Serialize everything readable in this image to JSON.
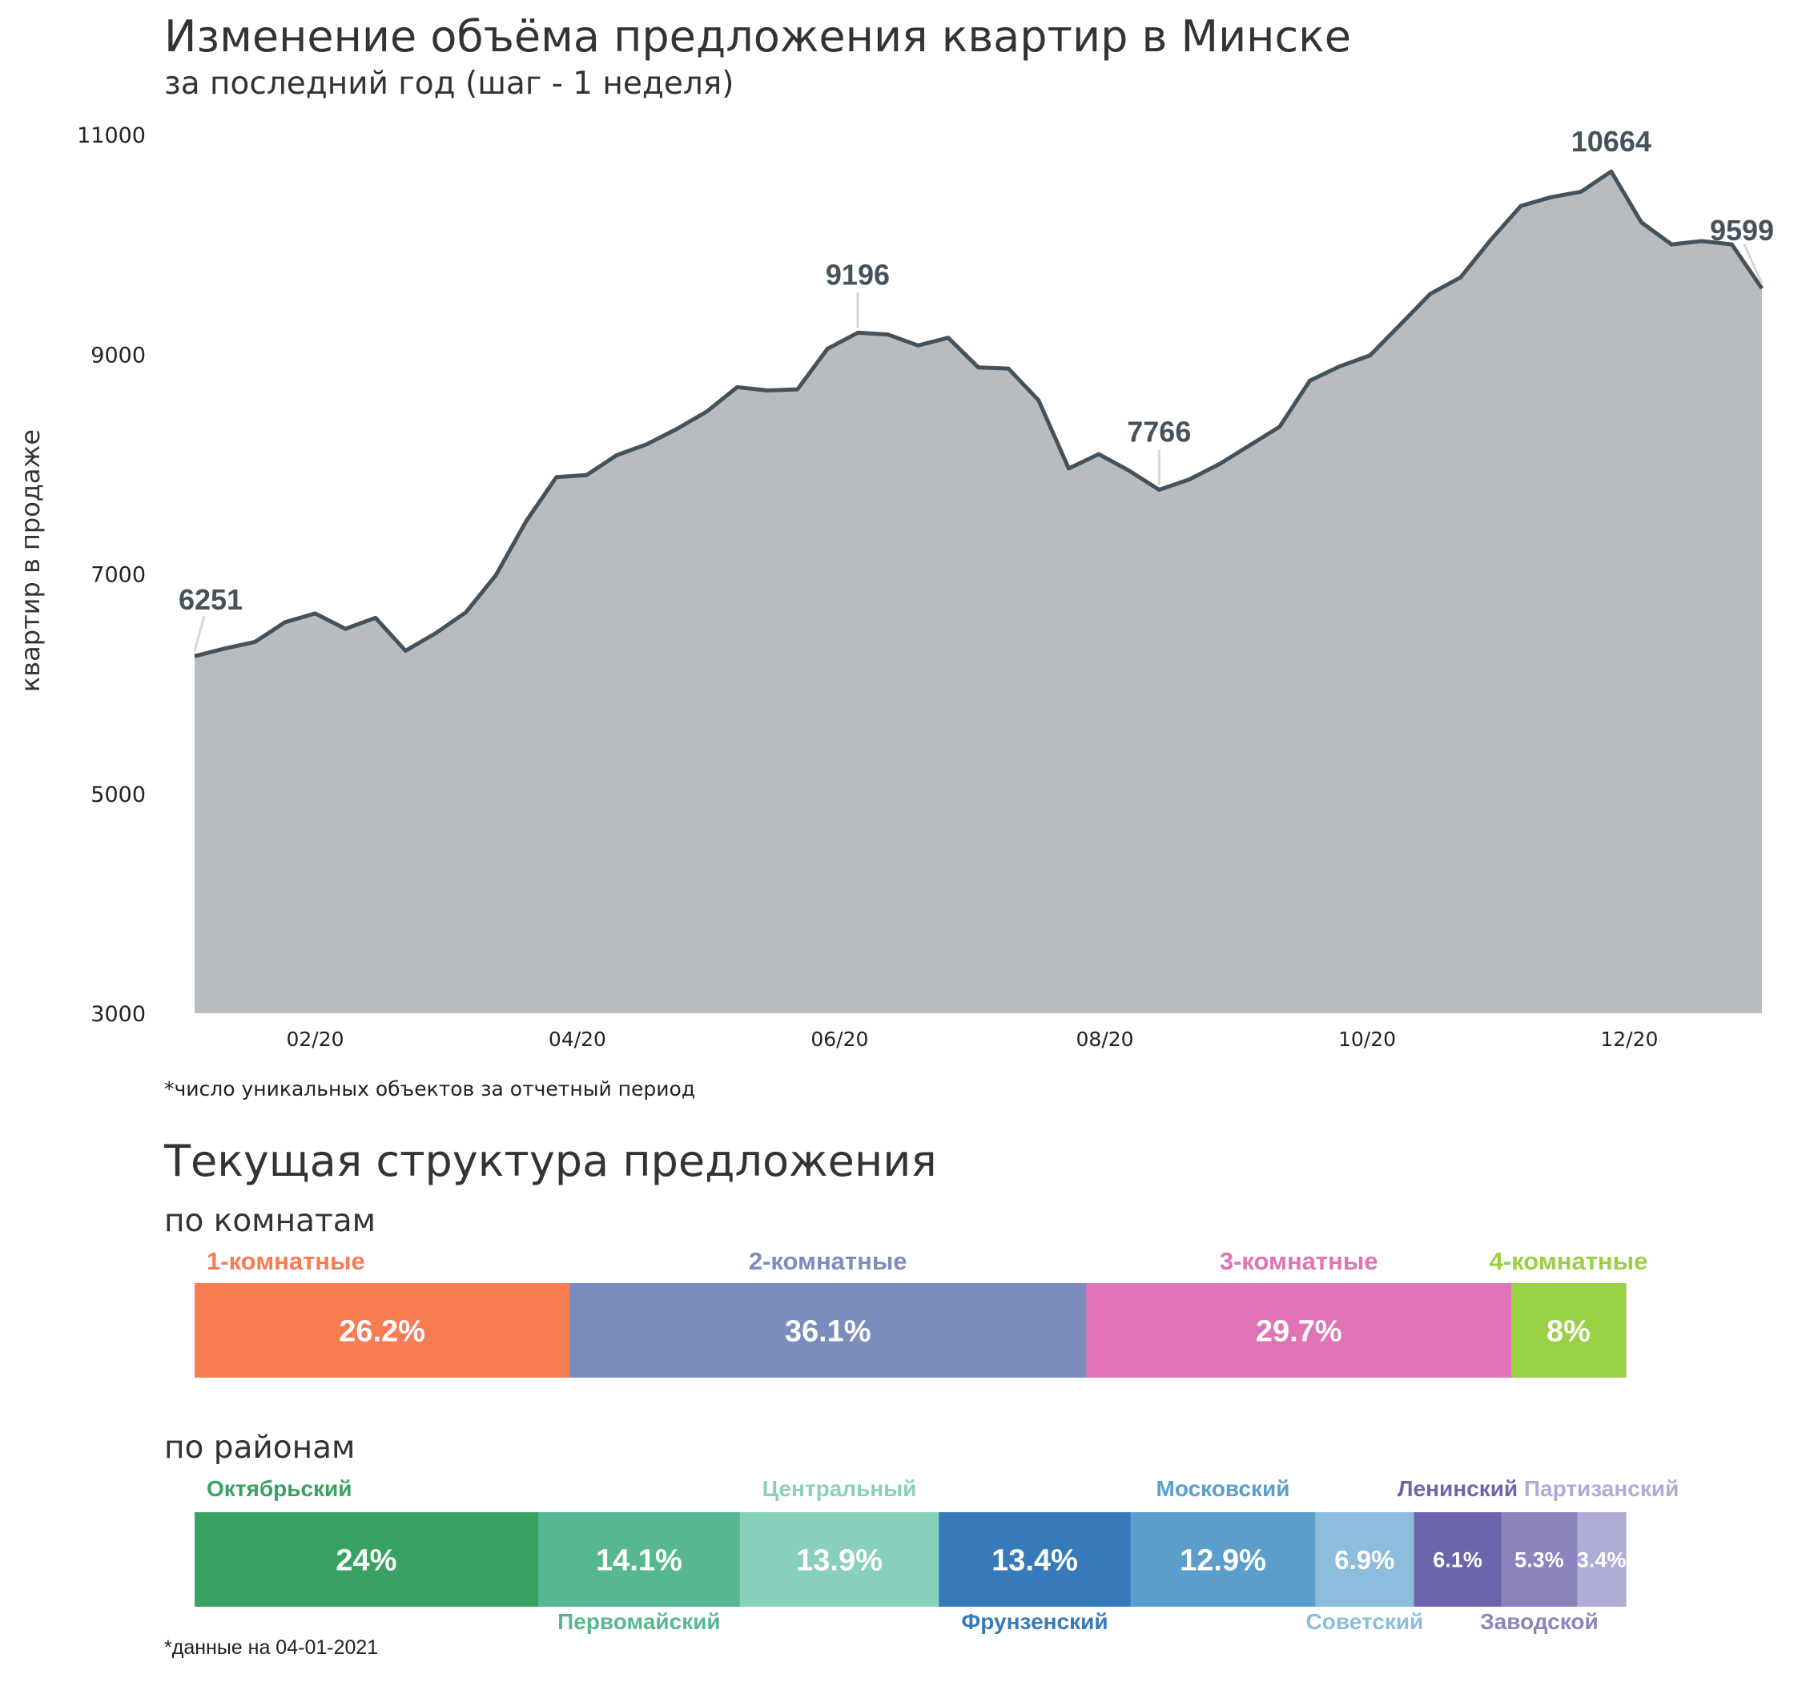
{
  "title": "Изменение объёма предложения квартир в Минске",
  "subtitle": "за последний год (шаг - 1 неделя)",
  "footnote_chart": "*число уникальных объектов за отчетный период",
  "structure_title": "Текущая структура предложения",
  "rooms_title": "по комнатам",
  "districts_title": "по районам",
  "footnote_date": "*данные на 04-01-2021",
  "colors": {
    "area_fill": "#b8bcbf",
    "line": "#44525c",
    "annotation": "#44525c"
  },
  "chart_data": {
    "type": "area",
    "ylabel": "квартир в продаже",
    "ylim": [
      3000,
      11000
    ],
    "yticks": [
      3000,
      5000,
      7000,
      9000,
      11000
    ],
    "ytick_labels": [
      "3000",
      "5000",
      "7000",
      "9000",
      "11000"
    ],
    "xticks": [
      {
        "label": "02/20",
        "week": 4
      },
      {
        "label": "04/20",
        "week": 12.7
      },
      {
        "label": "06/20",
        "week": 21.4
      },
      {
        "label": "08/20",
        "week": 30.2
      },
      {
        "label": "10/20",
        "week": 38.9
      },
      {
        "label": "12/20",
        "week": 47.6
      }
    ],
    "values": [
      6251,
      6320,
      6380,
      6560,
      6640,
      6500,
      6600,
      6300,
      6460,
      6650,
      6990,
      7480,
      7880,
      7900,
      8080,
      8180,
      8320,
      8480,
      8700,
      8670,
      8680,
      9050,
      9196,
      9180,
      9080,
      9150,
      8880,
      8870,
      8580,
      7960,
      8090,
      7940,
      7766,
      7860,
      8000,
      8170,
      8340,
      8760,
      8890,
      8990,
      9270,
      9550,
      9700,
      10040,
      10350,
      10430,
      10480,
      10664,
      10200,
      10000,
      10030,
      10000,
      9599
    ],
    "annotations": [
      {
        "index": 0,
        "value": 6251,
        "label": "6251"
      },
      {
        "index": 22,
        "value": 9196,
        "label": "9196"
      },
      {
        "index": 32,
        "value": 7766,
        "label": "7766"
      },
      {
        "index": 47,
        "value": 10664,
        "label": "10664"
      },
      {
        "index": 52,
        "value": 9599,
        "label": "9599"
      }
    ]
  },
  "rooms": [
    {
      "name": "1-комнатные",
      "value": 26.2,
      "label": "26.2%",
      "color": "#f97b52"
    },
    {
      "name": "2-комнатные",
      "value": 36.1,
      "label": "36.1%",
      "color": "#7b8cbe"
    },
    {
      "name": "3-комнатные",
      "value": 29.7,
      "label": "29.7%",
      "color": "#e072b6"
    },
    {
      "name": "4-комнатные",
      "value": 8.0,
      "label": "8%",
      "color": "#98d143"
    }
  ],
  "districts": [
    {
      "name": "Октябрьский",
      "value": 24.0,
      "label": "24%",
      "color": "#38a262",
      "name_pos": "top"
    },
    {
      "name": "Первомайский",
      "value": 14.1,
      "label": "14.1%",
      "color": "#57b790",
      "name_pos": "bottom"
    },
    {
      "name": "Центральный",
      "value": 13.9,
      "label": "13.9%",
      "color": "#88d0bb",
      "name_pos": "top"
    },
    {
      "name": "Фрунзенский",
      "value": 13.4,
      "label": "13.4%",
      "color": "#367ab9",
      "name_pos": "bottom"
    },
    {
      "name": "Московский",
      "value": 12.9,
      "label": "12.9%",
      "color": "#5b9ecb",
      "name_pos": "top"
    },
    {
      "name": "Советский",
      "value": 6.9,
      "label": "6.9%",
      "color": "#8cbddc",
      "name_pos": "bottom"
    },
    {
      "name": "Ленинский",
      "value": 6.1,
      "label": "6.1%",
      "color": "#6d65ac",
      "name_pos": "top"
    },
    {
      "name": "Заводской",
      "value": 5.3,
      "label": "5.3%",
      "color": "#8b84bd",
      "name_pos": "bottom"
    },
    {
      "name": "Партизанский",
      "value": 3.4,
      "label": "3.4%",
      "color": "#aeacd6",
      "name_pos": "top"
    }
  ]
}
